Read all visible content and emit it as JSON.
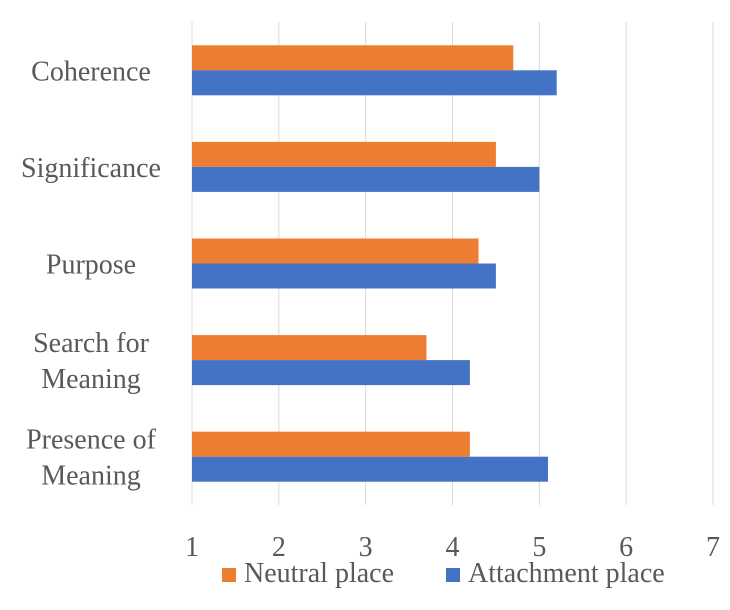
{
  "chart_data": {
    "type": "bar",
    "orientation": "horizontal",
    "categories": [
      "Coherence",
      "Significance",
      "Purpose",
      "Search for Meaning",
      "Presence of Meaning"
    ],
    "category_lines": [
      [
        "Coherence"
      ],
      [
        "Significance"
      ],
      [
        "Purpose"
      ],
      [
        "Search for",
        "Meaning"
      ],
      [
        "Presence of",
        "Meaning"
      ]
    ],
    "series": [
      {
        "name": "Neutral place",
        "color": "#ED7D31",
        "values": [
          4.7,
          4.5,
          4.3,
          3.7,
          4.2
        ]
      },
      {
        "name": "Attachment place",
        "color": "#4472C4",
        "values": [
          5.2,
          5.0,
          4.5,
          4.2,
          5.1
        ]
      }
    ],
    "xlim": [
      1,
      7
    ],
    "xticks": [
      "1",
      "2",
      "3",
      "4",
      "5",
      "6",
      "7"
    ],
    "grid": "vertical",
    "legend_position": "bottom",
    "title": "",
    "xlabel": "",
    "ylabel": ""
  }
}
